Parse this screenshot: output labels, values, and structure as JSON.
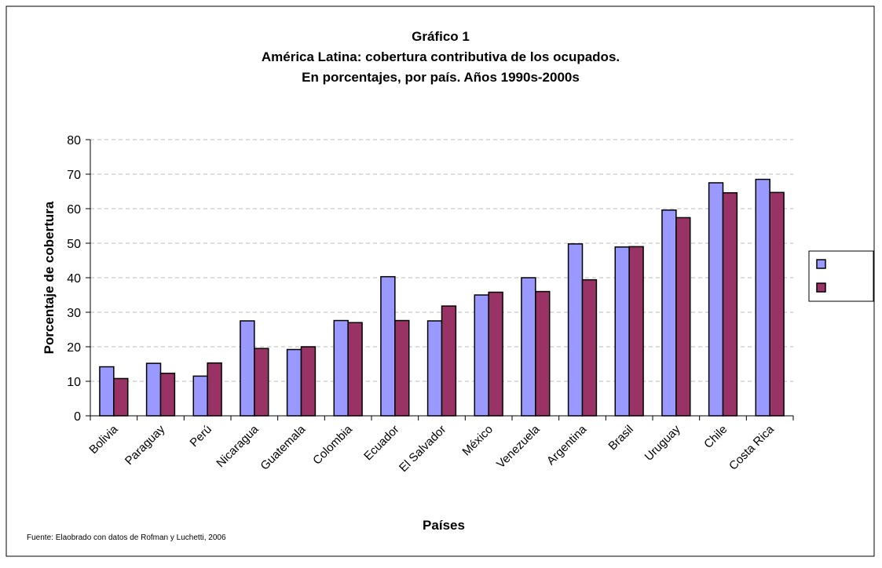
{
  "chart_data": {
    "type": "bar",
    "title": [
      "Gráfico 1",
      "América Latina: cobertura contributiva de los ocupados.",
      "En porcentajes, por país. Años 1990s-2000s"
    ],
    "x_label": "Países",
    "y_label": "Porcentaje de cobertura",
    "source": "Fuente: Elaobrado con datos de Rofman y Luchetti, 2006",
    "categories": [
      "Bolivia",
      "Paraguay",
      "Perú",
      "Nicaragua",
      "Guatemala",
      "Colombia",
      "Ecuador",
      "El Salvador",
      "México",
      "Venezuela",
      "Argentina",
      "Brasil",
      "Uruguay",
      "Chile",
      "Costa Rica"
    ],
    "series": [
      {
        "color": "#9999ff",
        "values": [
          14.2,
          15.2,
          11.5,
          27.5,
          19.2,
          27.6,
          40.3,
          27.5,
          35,
          40,
          49.8,
          48.9,
          59.6,
          67.5,
          68.5
        ]
      },
      {
        "color": "#993366",
        "values": [
          10.8,
          12.3,
          15.3,
          19.5,
          20,
          27,
          27.6,
          31.8,
          35.8,
          36,
          39.4,
          49,
          57.4,
          64.6,
          64.7
        ]
      }
    ],
    "ylim": [
      0,
      80
    ],
    "yticks": [
      0,
      10,
      20,
      30,
      40,
      50,
      60,
      70,
      80
    ],
    "grid": true,
    "legend": "right"
  }
}
